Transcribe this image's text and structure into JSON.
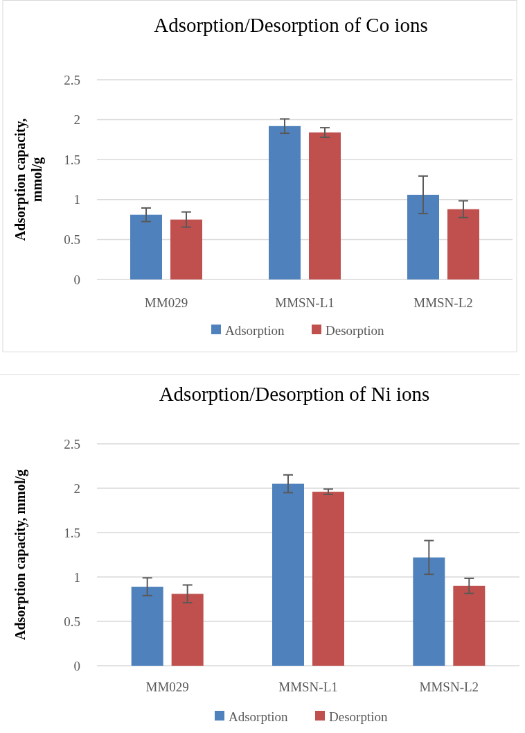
{
  "chart_data": [
    {
      "type": "bar",
      "title": "Adsorption/Desorption of Co ions",
      "ylabel": "Adsorption capacity, mmol/g",
      "categories": [
        "MM029",
        "MMSN-L1",
        "MMSN-L2"
      ],
      "series": [
        {
          "name": "Adsorption",
          "color": "#4f81bd",
          "values": [
            0.81,
            1.92,
            1.06
          ],
          "errors": [
            0.085,
            0.09,
            0.235
          ]
        },
        {
          "name": "Desorption",
          "color": "#c0504d",
          "values": [
            0.75,
            1.84,
            0.88
          ],
          "errors": [
            0.095,
            0.06,
            0.105
          ]
        }
      ],
      "ylim": [
        0,
        2.5
      ],
      "yticks": [
        0,
        0.5,
        1,
        1.5,
        2,
        2.5
      ],
      "grid": "y",
      "legend": "bottom"
    },
    {
      "type": "bar",
      "title": "Adsorption/Desorption of Ni ions",
      "ylabel": "Adsorption capacity, mmol/g",
      "categories": [
        "MM029",
        "MMSN-L1",
        "MMSN-L2"
      ],
      "series": [
        {
          "name": "Adsorption",
          "color": "#4f81bd",
          "values": [
            0.89,
            2.05,
            1.22
          ],
          "errors": [
            0.1,
            0.1,
            0.19
          ]
        },
        {
          "name": "Desorption",
          "color": "#c0504d",
          "values": [
            0.81,
            1.96,
            0.9
          ],
          "errors": [
            0.1,
            0.03,
            0.085
          ]
        }
      ],
      "ylim": [
        0,
        2.5
      ],
      "yticks": [
        0,
        0.5,
        1,
        1.5,
        2,
        2.5
      ],
      "grid": "y",
      "legend": "bottom"
    }
  ]
}
